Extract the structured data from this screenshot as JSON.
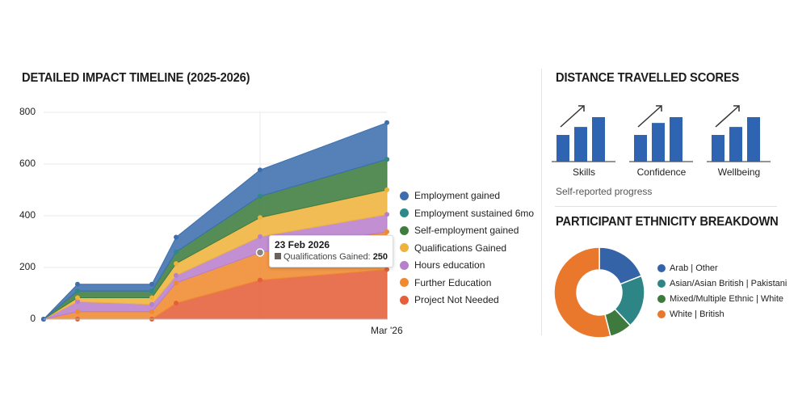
{
  "left": {
    "title": "DETAILED IMPACT TIMELINE (2025-2026)"
  },
  "chart_data": [
    {
      "type": "area",
      "stacked": true,
      "title": "DETAILED IMPACT TIMELINE (2025-2026)",
      "ylim": [
        0,
        800
      ],
      "yticks": [
        "0",
        "200",
        "400",
        "600",
        "800"
      ],
      "x_tick_labels": [
        "Mar '26"
      ],
      "grid": true,
      "legend_position": "right",
      "series": [
        {
          "name": "Project Not Needed",
          "color": "#e5603a",
          "values": [
            0,
            0,
            0,
            62,
            151,
            192
          ]
        },
        {
          "name": "Further Education",
          "color": "#f08a30",
          "values": [
            0,
            29,
            29,
            78,
            107,
            146
          ]
        },
        {
          "name": "Hours education",
          "color": "#b87fcc",
          "values": [
            0,
            39,
            28,
            29,
            61,
            67
          ]
        },
        {
          "name": "Qualifications Gained",
          "color": "#efb33c",
          "values": [
            0,
            15,
            26,
            46,
            74,
            95
          ]
        },
        {
          "name": "Self-employment gained",
          "color": "#3f7d3f",
          "values": [
            0,
            26,
            26,
            45,
            82,
            118
          ]
        },
        {
          "name": "Employment sustained 6mo",
          "color": "#2e8a8a",
          "values": [
            0,
            0,
            0,
            0,
            0,
            0
          ]
        },
        {
          "name": "Employment gained",
          "color": "#3d6fae",
          "values": [
            0,
            26,
            26,
            57,
            102,
            142
          ]
        }
      ],
      "tooltip": {
        "date": "23 Feb 2026",
        "label": "Qualifications Gained:",
        "value": "250"
      }
    },
    {
      "type": "pie",
      "title": "PARTICIPANT ETHNICITY BREAKDOWN",
      "donut": true,
      "legend_position": "right",
      "slices": [
        {
          "name": "Arab | Other",
          "value": 19,
          "color": "#3563a8"
        },
        {
          "name": "Asian/Asian British | Pakistani",
          "value": 19,
          "color": "#2e8585"
        },
        {
          "name": "Mixed/Multiple Ethnic | White",
          "value": 8,
          "color": "#3e7a3e"
        },
        {
          "name": "White | British",
          "value": 54,
          "color": "#e9782c"
        }
      ]
    }
  ],
  "legend_order": [
    6,
    5,
    4,
    3,
    2,
    1,
    0
  ],
  "distance": {
    "title": "DISTANCE TRAVELLED SCORES",
    "subtitle": "Self-reported progress",
    "bar_color": "#2f64b3",
    "items": [
      {
        "label": "Skills",
        "icon": "trend-up-bars-icon",
        "levels": [
          0.6,
          0.78,
          1
        ]
      },
      {
        "label": "Confidence",
        "icon": "trend-up-bars-icon",
        "levels": [
          0.6,
          0.87,
          1
        ]
      },
      {
        "label": "Wellbeing",
        "icon": "trend-up-bars-icon",
        "levels": [
          0.6,
          0.78,
          1
        ]
      }
    ]
  }
}
